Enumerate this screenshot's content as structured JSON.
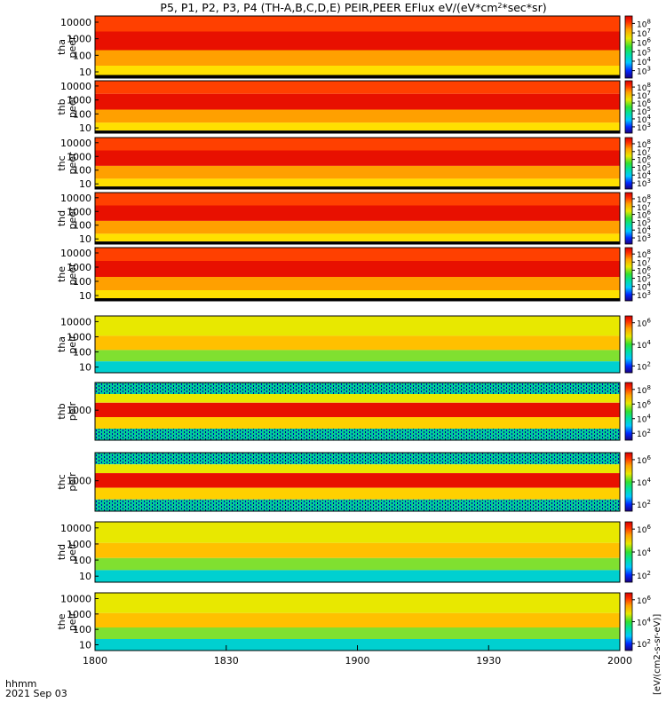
{
  "chart_data": {
    "type": "heatmap",
    "title": "P5, P1, P2, P3, P4 (TH-A,B,C,D,E) PEIR,PEER EFlux eV/(eV*cm",
    "title_sup": "2",
    "title_end": "*sec*sr)",
    "xlabel": "hhmm",
    "date_label": "2021 Sep 03",
    "x_ticks": [
      "1800",
      "1830",
      "1900",
      "1930",
      "2000"
    ],
    "colorbar_label": "[eV/(cm2-s-sr-eV)]",
    "colorscale": [
      "#1a0080",
      "#0028ff",
      "#00c8ff",
      "#00e0a0",
      "#30e030",
      "#e8e800",
      "#ffa000",
      "#ff3000",
      "#d80000"
    ],
    "panels": [
      {
        "probe": "tha",
        "type": "peer",
        "y_ticks": [
          "10000",
          "1000",
          "100",
          "10"
        ],
        "cbar_ticks": [
          {
            "base": "10",
            "exp": "8"
          },
          {
            "base": "10",
            "exp": "7"
          },
          {
            "base": "10",
            "exp": "6"
          },
          {
            "base": "10",
            "exp": "5"
          },
          {
            "base": "10",
            "exp": "4"
          },
          {
            "base": "10",
            "exp": "3"
          }
        ]
      },
      {
        "probe": "thb",
        "type": "peer",
        "y_ticks": [
          "10000",
          "1000",
          "100",
          "10"
        ],
        "cbar_ticks": [
          {
            "base": "10",
            "exp": "8"
          },
          {
            "base": "10",
            "exp": "7"
          },
          {
            "base": "10",
            "exp": "6"
          },
          {
            "base": "10",
            "exp": "5"
          },
          {
            "base": "10",
            "exp": "4"
          },
          {
            "base": "10",
            "exp": "3"
          }
        ]
      },
      {
        "probe": "thc",
        "type": "peer",
        "y_ticks": [
          "10000",
          "1000",
          "100",
          "10"
        ],
        "cbar_ticks": [
          {
            "base": "10",
            "exp": "8"
          },
          {
            "base": "10",
            "exp": "7"
          },
          {
            "base": "10",
            "exp": "6"
          },
          {
            "base": "10",
            "exp": "5"
          },
          {
            "base": "10",
            "exp": "4"
          },
          {
            "base": "10",
            "exp": "3"
          }
        ]
      },
      {
        "probe": "thd",
        "type": "peer",
        "y_ticks": [
          "10000",
          "1000",
          "100",
          "10"
        ],
        "cbar_ticks": [
          {
            "base": "10",
            "exp": "8"
          },
          {
            "base": "10",
            "exp": "7"
          },
          {
            "base": "10",
            "exp": "6"
          },
          {
            "base": "10",
            "exp": "5"
          },
          {
            "base": "10",
            "exp": "4"
          },
          {
            "base": "10",
            "exp": "3"
          }
        ]
      },
      {
        "probe": "the",
        "type": "peer",
        "y_ticks": [
          "10000",
          "1000",
          "100",
          "10"
        ],
        "cbar_ticks": [
          {
            "base": "10",
            "exp": "8"
          },
          {
            "base": "10",
            "exp": "7"
          },
          {
            "base": "10",
            "exp": "6"
          },
          {
            "base": "10",
            "exp": "5"
          },
          {
            "base": "10",
            "exp": "4"
          },
          {
            "base": "10",
            "exp": "3"
          }
        ]
      },
      {
        "probe": "tha",
        "type": "peir",
        "y_ticks": [
          "10000",
          "1000",
          "100",
          "10"
        ],
        "cbar_ticks": [
          {
            "base": "10",
            "exp": "6"
          },
          {
            "base": "10",
            "exp": "4"
          },
          {
            "base": "10",
            "exp": "2"
          }
        ]
      },
      {
        "probe": "thb",
        "type": "peir",
        "y_ticks": [
          "1000"
        ],
        "cbar_ticks": [
          {
            "base": "10",
            "exp": "8"
          },
          {
            "base": "10",
            "exp": "6"
          },
          {
            "base": "10",
            "exp": "4"
          },
          {
            "base": "10",
            "exp": "2"
          }
        ]
      },
      {
        "probe": "thc",
        "type": "peir",
        "y_ticks": [
          "1000"
        ],
        "cbar_ticks": [
          {
            "base": "10",
            "exp": "6"
          },
          {
            "base": "10",
            "exp": "4"
          },
          {
            "base": "10",
            "exp": "2"
          }
        ]
      },
      {
        "probe": "thd",
        "type": "peir",
        "y_ticks": [
          "10000",
          "1000",
          "100",
          "10"
        ],
        "cbar_ticks": [
          {
            "base": "10",
            "exp": "6"
          },
          {
            "base": "10",
            "exp": "4"
          },
          {
            "base": "10",
            "exp": "2"
          }
        ]
      },
      {
        "probe": "the",
        "type": "peir",
        "y_ticks": [
          "10000",
          "1000",
          "100",
          "10"
        ],
        "cbar_ticks": [
          {
            "base": "10",
            "exp": "6"
          },
          {
            "base": "10",
            "exp": "4"
          },
          {
            "base": "10",
            "exp": "2"
          }
        ]
      }
    ]
  }
}
